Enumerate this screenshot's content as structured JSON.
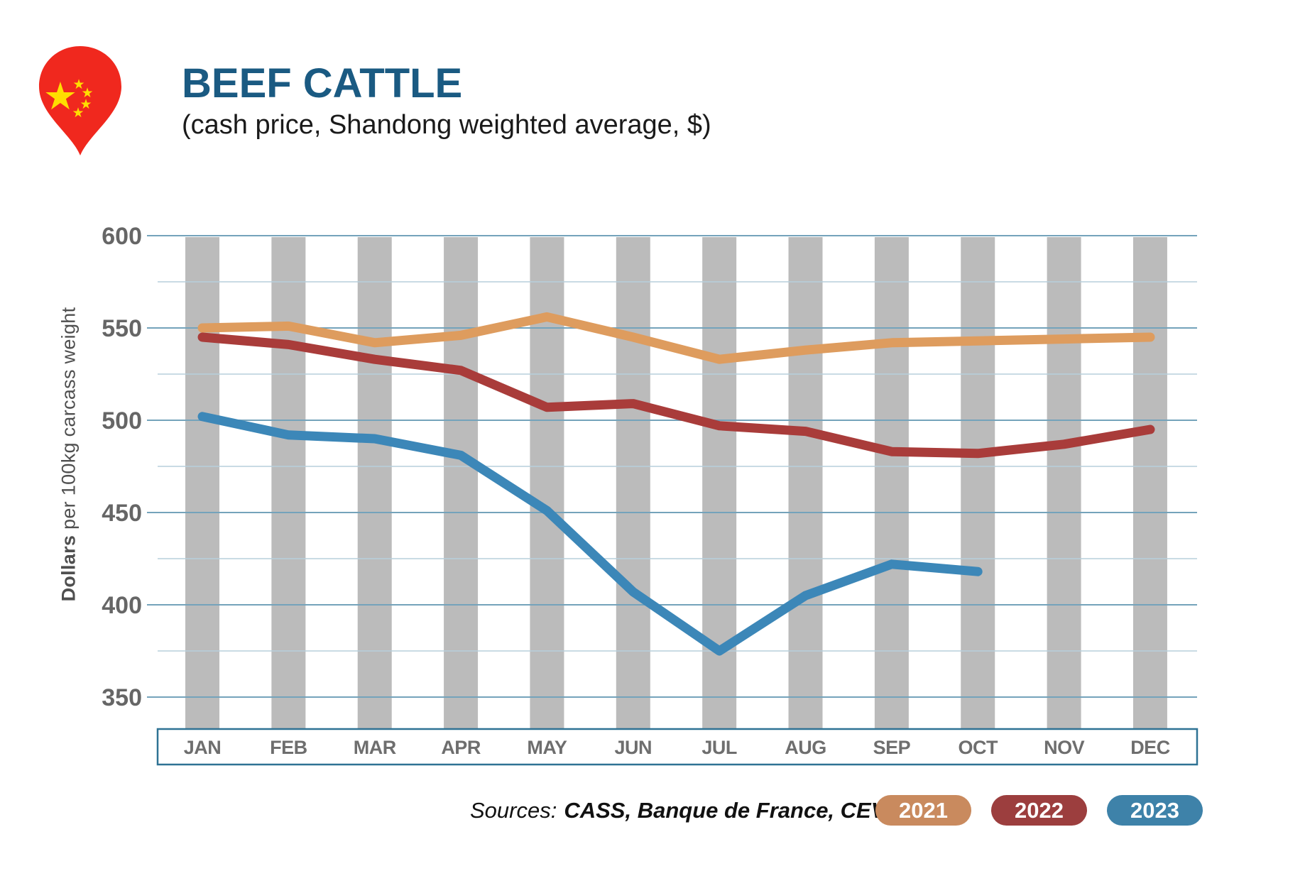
{
  "header": {
    "title": "BEEF CATTLE",
    "subtitle": "(cash price, Shandong weighted average, $)"
  },
  "chart_data": {
    "type": "line",
    "title": "BEEF CATTLE",
    "subtitle": "(cash price, Shandong weighted average, $)",
    "ylabel_bold": "Dollars",
    "ylabel_rest": " per 100kg carcass weight",
    "categories": [
      "JAN",
      "FEB",
      "MAR",
      "APR",
      "MAY",
      "JUN",
      "JUL",
      "AUG",
      "SEP",
      "OCT",
      "NOV",
      "DEC"
    ],
    "ylim": [
      350,
      600
    ],
    "y_ticks_major": [
      600,
      550,
      500,
      450,
      400,
      350
    ],
    "y_ticks_minor": [
      575,
      525,
      475,
      425,
      375
    ],
    "grid": true,
    "legend_position": "bottom-right",
    "series": [
      {
        "name": "2021",
        "color": "#DE9C5E",
        "pill_color": "#C98A5E",
        "values": [
          550,
          551,
          542,
          546,
          556,
          545,
          533,
          538,
          542,
          543,
          544,
          545
        ]
      },
      {
        "name": "2022",
        "color": "#A93C3A",
        "pill_color": "#9C3E3E",
        "values": [
          545,
          541,
          533,
          527,
          507,
          509,
          497,
          494,
          483,
          482,
          487,
          495
        ]
      },
      {
        "name": "2023",
        "color": "#3C87B8",
        "pill_color": "#3E82A9",
        "values": [
          502,
          492,
          490,
          481,
          451,
          407,
          375,
          405,
          422,
          418,
          null,
          null
        ]
      }
    ]
  },
  "footer": {
    "sources_label": "Sources:",
    "sources_value": "CASS, Banque de France, CEVA"
  },
  "style": {
    "title_color": "#1A5A82",
    "bar_color": "#BBBBBB",
    "grid_major_color": "#74A3BB",
    "grid_minor_color": "#B7CFDC",
    "tick_text_color": "#666666",
    "month_text_color": "#6E6E6E",
    "box_border_color": "#2E7294",
    "pin_red": "#F0281E",
    "star_yellow": "#FFDE00"
  }
}
